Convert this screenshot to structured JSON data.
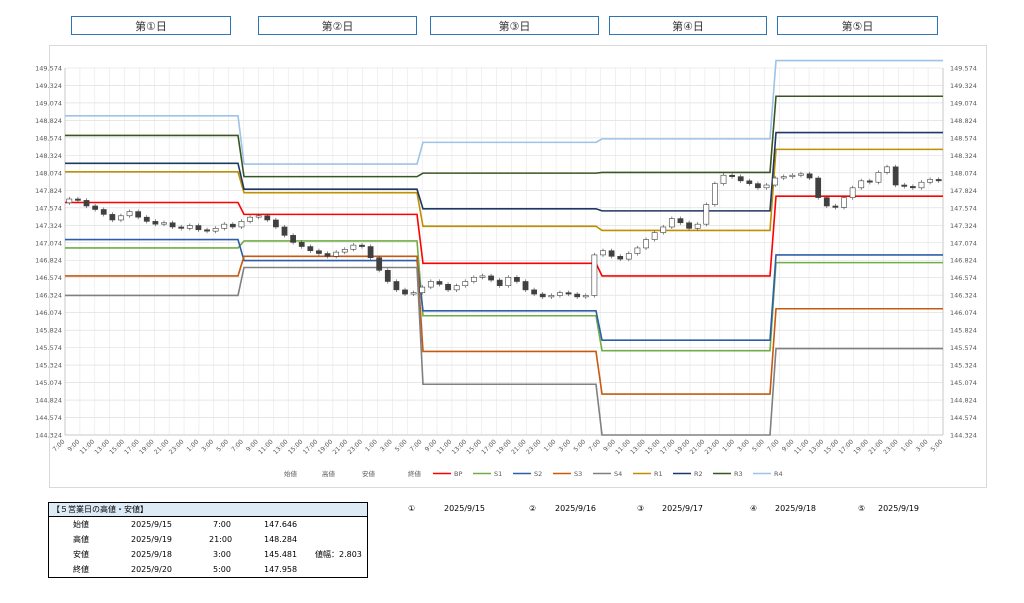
{
  "day_labels": [
    "第①日",
    "第②日",
    "第③日",
    "第④日",
    "第⑤日"
  ],
  "chart_data": {
    "type": "candlestick",
    "y_ticks": [
      "149.574",
      "149.324",
      "149.074",
      "148.824",
      "148.574",
      "148.324",
      "148.074",
      "147.824",
      "147.574",
      "147.324",
      "147.074",
      "146.824",
      "146.574",
      "146.324",
      "146.074",
      "145.824",
      "145.574",
      "145.324",
      "145.074",
      "144.824",
      "144.574",
      "144.324"
    ],
    "ylim": [
      144.324,
      149.574
    ],
    "x_labels": [
      "7:00",
      "9:00",
      "11:00",
      "13:00",
      "15:00",
      "17:00",
      "19:00",
      "21:00",
      "23:00",
      "1:00",
      "3:00",
      "5:00",
      "7:00",
      "9:00",
      "11:00",
      "13:00",
      "15:00",
      "17:00",
      "19:00",
      "21:00",
      "23:00",
      "1:00",
      "3:00",
      "5:00",
      "7:00",
      "9:00",
      "11:00",
      "13:00",
      "15:00",
      "17:00",
      "19:00",
      "21:00",
      "23:00",
      "1:00",
      "3:00",
      "5:00",
      "7:00",
      "9:00",
      "11:00",
      "13:00",
      "15:00",
      "17:00",
      "19:00",
      "21:00",
      "23:00",
      "1:00",
      "3:00",
      "5:00",
      "7:00",
      "9:00",
      "11:00",
      "13:00",
      "15:00",
      "17:00",
      "19:00",
      "21:00",
      "23:00",
      "1:00",
      "3:00",
      "5:00"
    ],
    "legend_ohlc": [
      "始値",
      "高値",
      "安値",
      "終値"
    ],
    "pivot_levels": [
      {
        "name": "BP",
        "color": "#ff0000",
        "values": [
          147.65,
          147.48,
          146.78,
          146.6,
          147.74
        ]
      },
      {
        "name": "S1",
        "color": "#70ad47",
        "values": [
          147.0,
          147.1,
          146.03,
          145.53,
          146.79
        ]
      },
      {
        "name": "S2",
        "color": "#2e5ea8",
        "values": [
          147.12,
          146.82,
          146.1,
          145.68,
          146.9
        ]
      },
      {
        "name": "S3",
        "color": "#c55a11",
        "values": [
          146.6,
          146.88,
          145.52,
          144.91,
          146.13
        ]
      },
      {
        "name": "S4",
        "color": "#808080",
        "values": [
          146.32,
          146.72,
          145.05,
          144.32,
          145.56
        ]
      },
      {
        "name": "R1",
        "color": "#bf8f00",
        "values": [
          148.09,
          147.79,
          147.31,
          147.25,
          148.41
        ]
      },
      {
        "name": "R2",
        "color": "#1f3864",
        "values": [
          148.21,
          147.84,
          147.56,
          147.53,
          148.65
        ]
      },
      {
        "name": "R3",
        "color": "#375623",
        "values": [
          148.61,
          148.02,
          148.07,
          148.08,
          149.17
        ]
      },
      {
        "name": "R4",
        "color": "#9dc3e6",
        "values": [
          148.89,
          148.2,
          148.51,
          148.56,
          149.68
        ]
      }
    ],
    "close_series": [
      147.7,
      147.68,
      147.6,
      147.55,
      147.48,
      147.4,
      147.46,
      147.52,
      147.44,
      147.38,
      147.34,
      147.36,
      147.3,
      147.28,
      147.32,
      147.26,
      147.24,
      147.28,
      147.34,
      147.3,
      147.38,
      147.44,
      147.46,
      147.4,
      147.3,
      147.18,
      147.08,
      147.02,
      146.96,
      146.92,
      146.88,
      146.94,
      146.98,
      147.04,
      147.02,
      146.86,
      146.68,
      146.52,
      146.4,
      146.34,
      146.36,
      146.44,
      146.52,
      146.48,
      146.4,
      146.46,
      146.52,
      146.58,
      146.6,
      146.54,
      146.46,
      146.58,
      146.52,
      146.4,
      146.34,
      146.3,
      146.32,
      146.36,
      146.34,
      146.3,
      146.32,
      146.9,
      146.96,
      146.88,
      146.84,
      146.92,
      147.0,
      147.12,
      147.22,
      147.3,
      147.42,
      147.36,
      147.28,
      147.34,
      147.62,
      147.92,
      148.04,
      148.02,
      147.96,
      147.92,
      147.86,
      147.9,
      148.0,
      148.02,
      148.04,
      148.06,
      148.0,
      147.72,
      147.6,
      147.58,
      147.72,
      147.86,
      147.96,
      147.94,
      148.08,
      148.16,
      147.9,
      147.88,
      147.86,
      147.94,
      147.98,
      147.96
    ],
    "summary_title": "【５営業日の高値・安値】",
    "summary_rows": [
      {
        "label": "始値",
        "date": "2025/9/15",
        "time": "7:00",
        "value": "147.646",
        "extra": ""
      },
      {
        "label": "高値",
        "date": "2025/9/19",
        "time": "21:00",
        "value": "148.284",
        "extra": ""
      },
      {
        "label": "安値",
        "date": "2025/9/18",
        "time": "3:00",
        "value": "145.481",
        "extra": "値幅：2.803"
      },
      {
        "label": "終値",
        "date": "2025/9/20",
        "time": "5:00",
        "value": "147.958",
        "extra": ""
      }
    ],
    "day_refs": [
      {
        "mark": "①",
        "date": "2025/9/15"
      },
      {
        "mark": "②",
        "date": "2025/9/16"
      },
      {
        "mark": "③",
        "date": "2025/9/17"
      },
      {
        "mark": "④",
        "date": "2025/9/18"
      },
      {
        "mark": "⑤",
        "date": "2025/9/19"
      }
    ]
  }
}
